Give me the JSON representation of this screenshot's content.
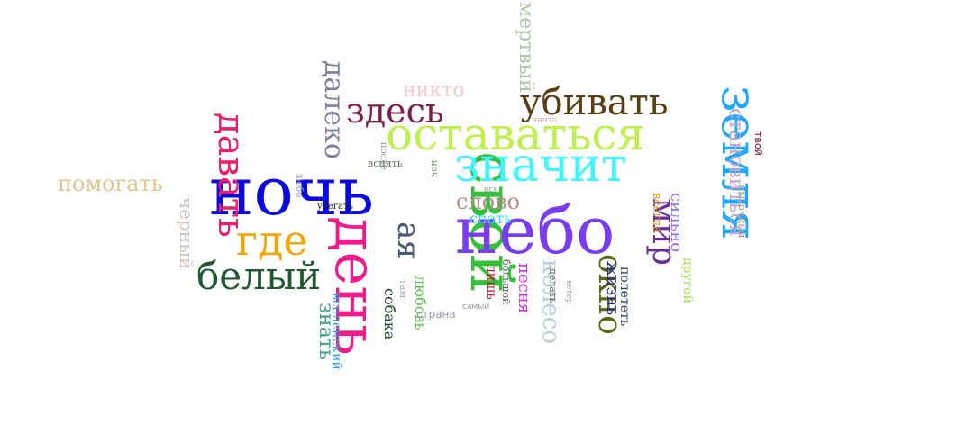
{
  "words": [
    {
      "key": "noch",
      "text": "ночь",
      "color": "#0a0adf"
    },
    {
      "key": "den",
      "text": "день",
      "color": "#ef1a8c"
    },
    {
      "key": "svoy",
      "text": "свой",
      "color": "#33c13a"
    },
    {
      "key": "nebo",
      "text": "небо",
      "color": "#7a3cf0"
    },
    {
      "key": "znachit",
      "text": "значит",
      "color": "#3ef6ff"
    },
    {
      "key": "zemlya",
      "text": "земля",
      "color": "#1ea7ff"
    },
    {
      "key": "ostavatsya",
      "text": "оставаться",
      "color": "#bff050"
    },
    {
      "key": "davat",
      "text": "давать",
      "color": "#f01a6c"
    },
    {
      "key": "gde",
      "text": "где",
      "color": "#f5a40a"
    },
    {
      "key": "belyy",
      "text": "белый",
      "color": "#1e5a2d"
    },
    {
      "key": "ubivat",
      "text": "убивать",
      "color": "#5a3d12"
    },
    {
      "key": "mir",
      "text": "мир",
      "color": "#6b2d9b"
    },
    {
      "key": "okno",
      "text": "окно",
      "color": "#5a6614"
    },
    {
      "key": "zdes",
      "text": "здесь",
      "color": "#7d1d4a"
    },
    {
      "key": "daleko",
      "text": "далеко",
      "color": "#7c829e"
    },
    {
      "key": "pomogat",
      "text": "помогать",
      "color": "#ddc58e"
    },
    {
      "key": "stanovitsya",
      "text": "становиться",
      "color": "#c0a6ca"
    },
    {
      "key": "mertvyy",
      "text": "мертвый",
      "color": "#b2c3a8"
    },
    {
      "key": "nikto",
      "text": "никто",
      "color": "#f7c8c8"
    },
    {
      "key": "chernyy",
      "text": "черный",
      "color": "#cfc5bb"
    },
    {
      "key": "slovo",
      "text": "слово",
      "color": "#b88a8a"
    },
    {
      "key": "spat",
      "text": "спать",
      "color": "#2ed8e6"
    },
    {
      "key": "znat",
      "text": "знать",
      "color": "#3fa08a"
    },
    {
      "key": "vselenskiy",
      "text": "вселенский",
      "color": "#2aa0e8"
    },
    {
      "key": "sobaka",
      "text": "собака",
      "color": "#1c4a22"
    },
    {
      "key": "aya",
      "text": "ая",
      "color": "#4a5a78"
    },
    {
      "key": "lyubov",
      "text": "любовь",
      "color": "#64c250"
    },
    {
      "key": "koleso",
      "text": "колесо",
      "color": "#b7d0de"
    },
    {
      "key": "pesnya",
      "text": "песня",
      "color": "#d02ee0"
    },
    {
      "key": "lish",
      "text": "лишь",
      "color": "#b81a3a"
    },
    {
      "key": "bolshoy",
      "text": "большой",
      "color": "#555555"
    },
    {
      "key": "zhizn",
      "text": "жизнь",
      "color": "#1c2c8c"
    },
    {
      "key": "poletet",
      "text": "полететь",
      "color": "#2c3c5c"
    },
    {
      "key": "silno",
      "text": "сильно",
      "color": "#8e6ee8"
    },
    {
      "key": "drugoy",
      "text": "другой",
      "color": "#a4e04a"
    },
    {
      "key": "vsegda",
      "text": "всегда",
      "color": "#e6a01e"
    },
    {
      "key": "tvoy",
      "text": "твой",
      "color": "#7a0a3a"
    },
    {
      "key": "pytochnyy",
      "text": "пыточный",
      "color": "#999999"
    },
    {
      "key": "strana",
      "text": "страна",
      "color": "#9a9ab8"
    },
    {
      "key": "tam",
      "text": "там",
      "color": "#9ab0a0"
    },
    {
      "key": "samyy",
      "text": "самый",
      "color": "#9a9aaa"
    },
    {
      "key": "delat",
      "text": "делать",
      "color": "#6a6a6a"
    },
    {
      "key": "veter",
      "text": "ветер",
      "color": "#aaaaaa"
    },
    {
      "key": "nichto",
      "text": "ничто",
      "color": "#d8a8a8"
    },
    {
      "key": "posle",
      "text": "после",
      "color": "#8899aa"
    },
    {
      "key": "vspyat",
      "text": "вспять",
      "color": "#5a7a5a"
    },
    {
      "key": "lyubo",
      "text": "любо",
      "color": "#9a9aaa"
    },
    {
      "key": "ubegat",
      "text": "убегать",
      "color": "#222222"
    },
    {
      "key": "nich",
      "text": "ноч",
      "color": "#6aa06a"
    },
    {
      "key": "vsya",
      "text": "вся",
      "color": "#9a9aaa"
    }
  ]
}
